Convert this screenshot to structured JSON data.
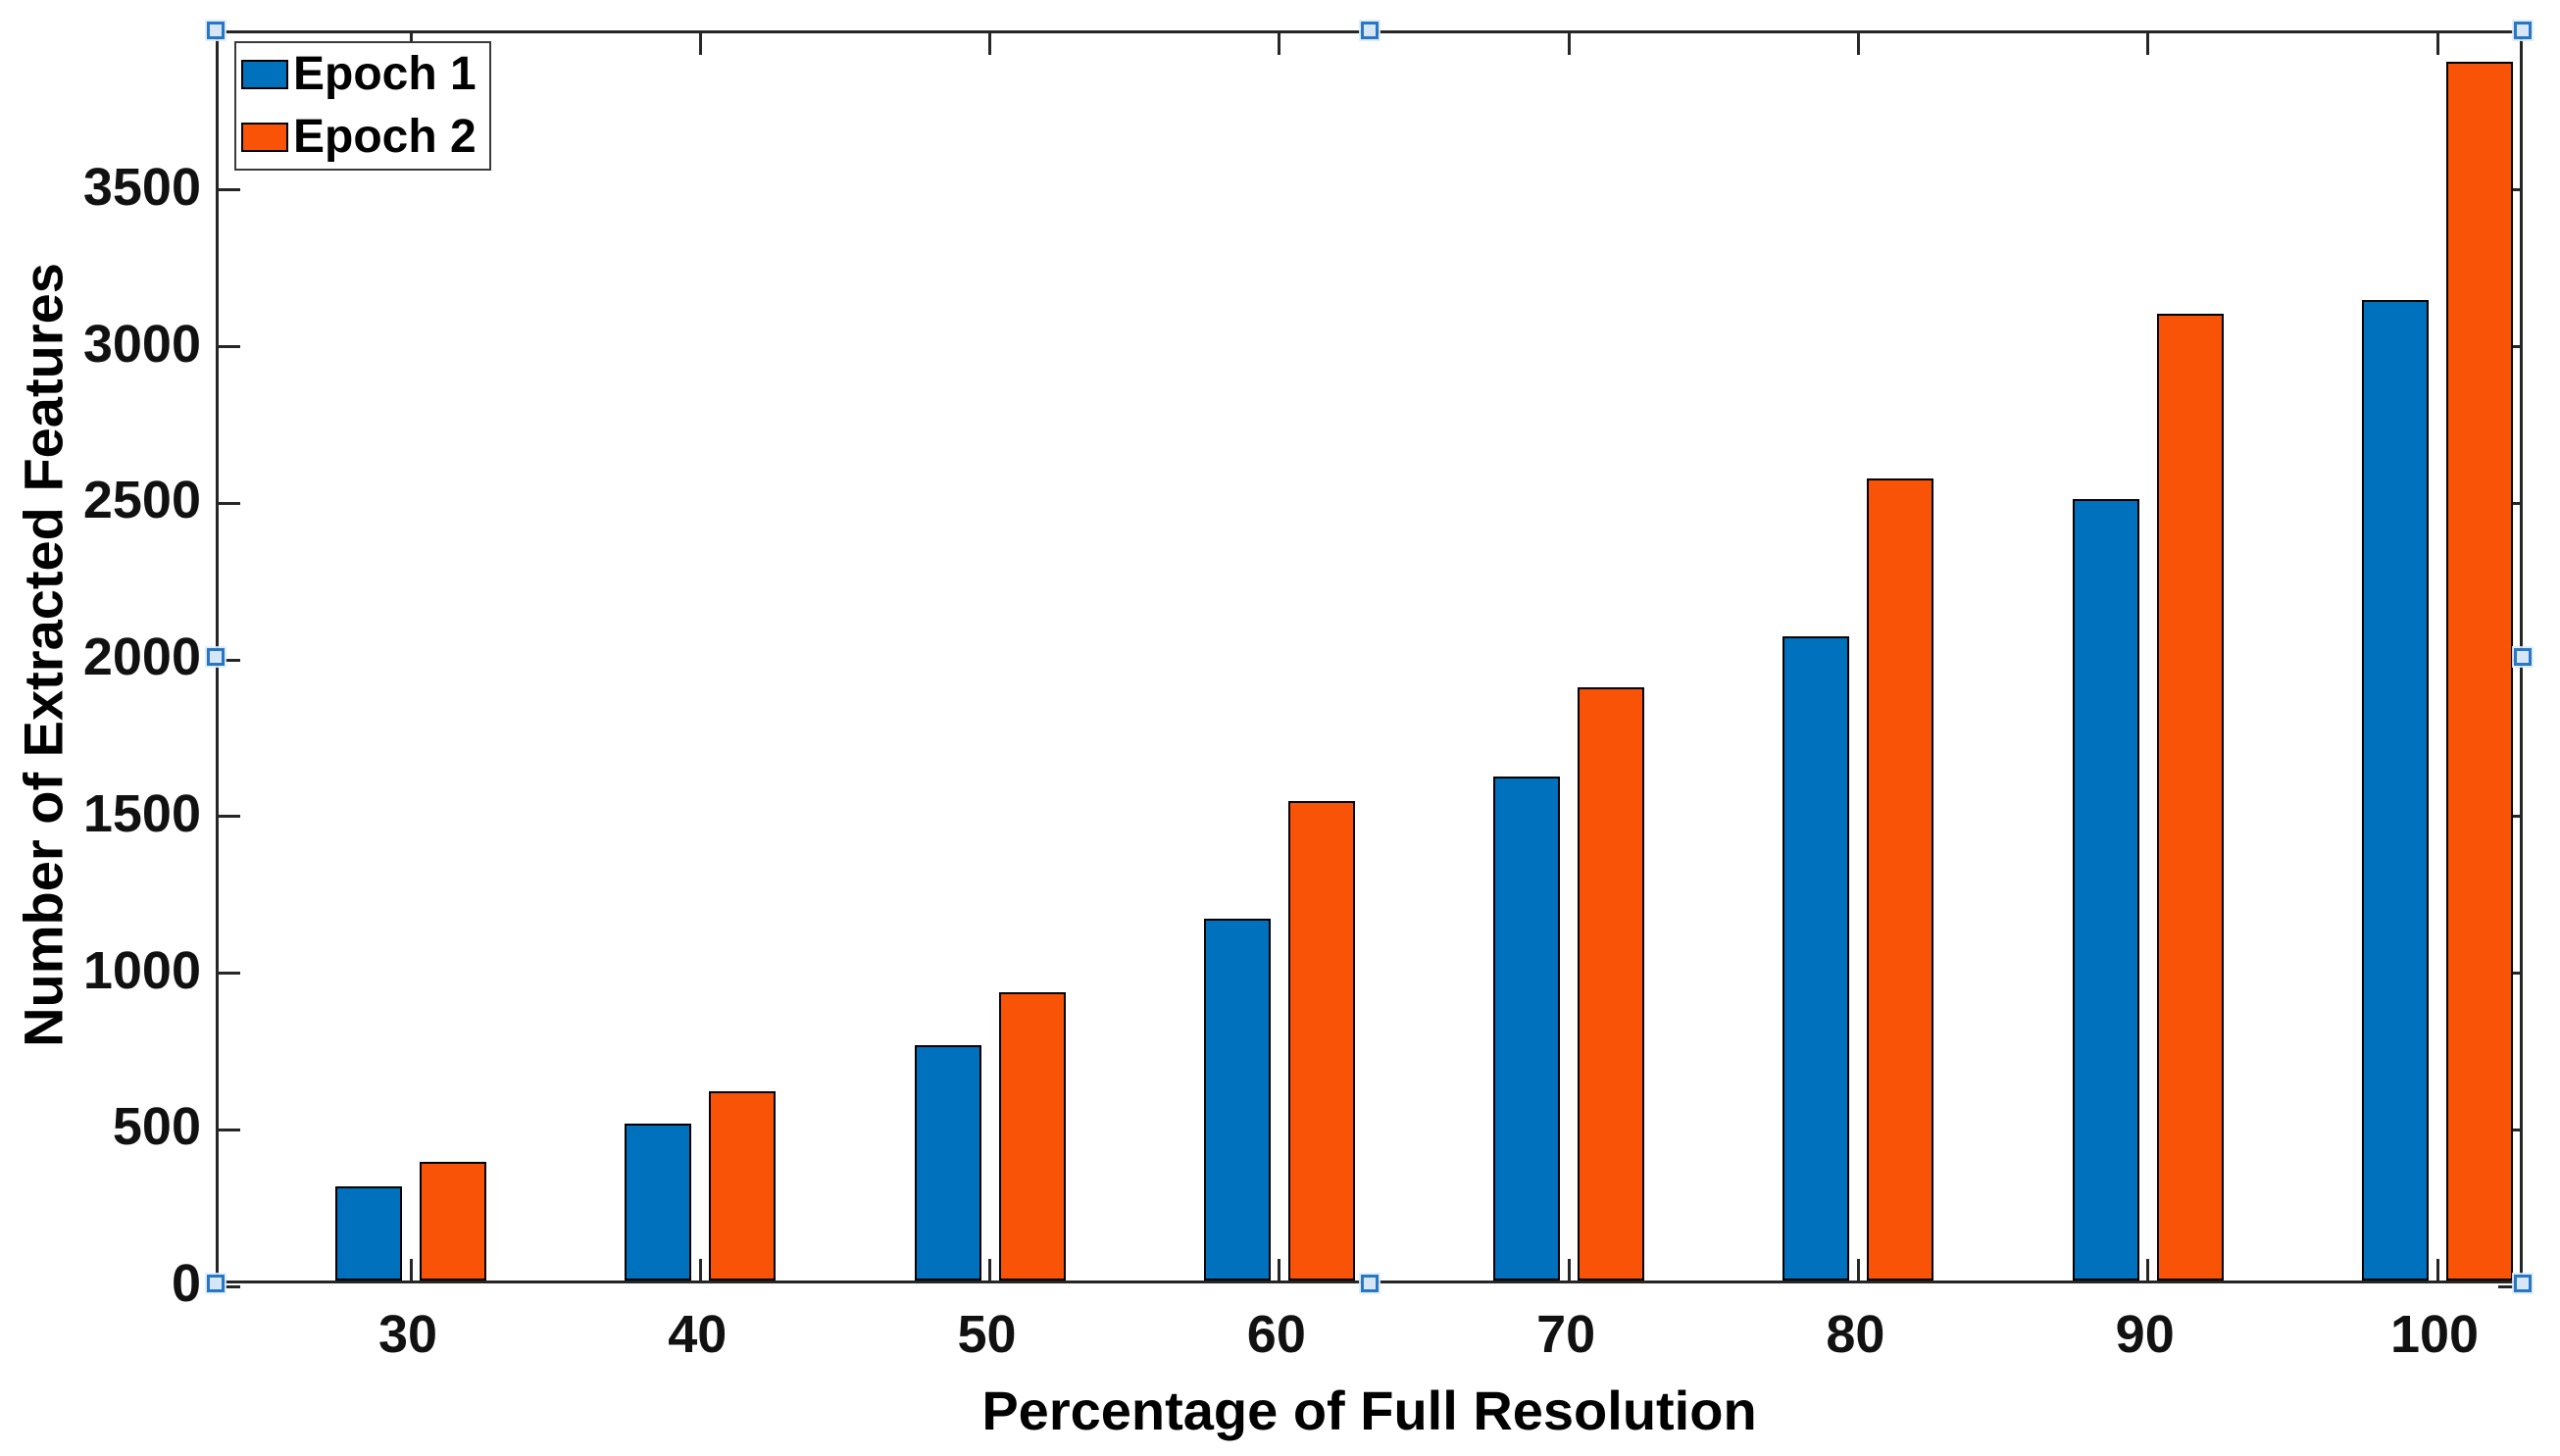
{
  "chart_data": {
    "type": "bar",
    "title": "",
    "xlabel": "Percentage of Full Resolution",
    "ylabel": "Number of Extracted Features",
    "categories": [
      "30",
      "40",
      "50",
      "60",
      "70",
      "80",
      "90",
      "100"
    ],
    "series": [
      {
        "name": "Epoch 1",
        "color": "#0072BD",
        "values": [
          300,
          500,
          750,
          1155,
          1610,
          2055,
          2495,
          3130
        ]
      },
      {
        "name": "Epoch 2",
        "color": "#F95307",
        "values": [
          380,
          605,
          920,
          1530,
          1895,
          2560,
          3085,
          3890
        ]
      }
    ],
    "ylim": [
      0,
      4000
    ],
    "yticks": [
      0,
      500,
      1000,
      1500,
      2000,
      2500,
      3000,
      3500
    ],
    "xlim": [
      23.4,
      103
    ],
    "grid": false,
    "legend_position": "northwest",
    "bar_edge_color": "#000000"
  },
  "axes": {
    "frame_color": "#262626",
    "tick_color": "#262626",
    "tick_direction": "in",
    "box": "on"
  },
  "selection": {
    "state": "axes-selected",
    "handle_border_color": "#2777C4",
    "handle_fill_color": "#D6E6F7",
    "handle_positions": [
      "top-left",
      "top-center",
      "top-right",
      "middle-left",
      "middle-right",
      "bottom-left",
      "bottom-center",
      "bottom-right"
    ]
  }
}
